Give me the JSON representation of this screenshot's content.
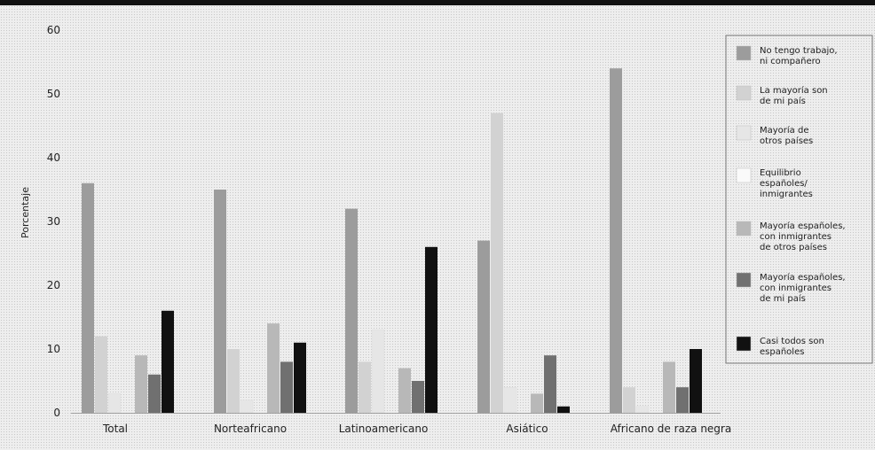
{
  "chart_data": {
    "type": "bar",
    "ylabel": "Porcentaje",
    "ylim": [
      0,
      60
    ],
    "yticks": [
      "0",
      "10",
      "20",
      "30",
      "40",
      "50",
      "60"
    ],
    "categories": [
      "Total",
      "Norteafricano",
      "Latinoamericano",
      "Asiático",
      "Africano de raza negra"
    ],
    "legend_position": "right",
    "series": [
      {
        "name": "No tengo trabajo, ni compañero",
        "legend_lines": [
          "No tengo trabajo,",
          "ni compañero"
        ],
        "color": "#9c9c9c",
        "values": [
          36,
          35,
          32,
          27,
          54
        ]
      },
      {
        "name": "La mayoría son de mi país",
        "legend_lines": [
          "La mayoría son",
          "de mi país"
        ],
        "color": "#d2d2d2",
        "values": [
          12,
          10,
          8,
          47,
          4
        ]
      },
      {
        "name": "Mayoría de otros países",
        "legend_lines": [
          "Mayoría de",
          "otros países"
        ],
        "color": "#e6e6e6",
        "values": [
          3,
          2,
          13,
          4,
          1
        ]
      },
      {
        "name": "Equilibrio españoles/ inmigrantes",
        "legend_lines": [
          "Equilibrio",
          "españoles/",
          "inmigrantes"
        ],
        "color": "#fafafa",
        "values": [
          0,
          0,
          0,
          0,
          0
        ]
      },
      {
        "name": "Mayoría españoles, con inmigrantes de otros países",
        "legend_lines": [
          "Mayoría españoles,",
          "con inmigrantes",
          "de otros países"
        ],
        "color": "#b8b8b8",
        "values": [
          9,
          14,
          7,
          3,
          8
        ]
      },
      {
        "name": "Mayoría españoles, con inmigrantes de mi país",
        "legend_lines": [
          "Mayoría españoles,",
          "con inmigrantes",
          "de mi país"
        ],
        "color": "#707070",
        "values": [
          6,
          8,
          5,
          9,
          4
        ]
      },
      {
        "name": "Casi todos son españoles",
        "legend_lines": [
          "Casi todos son",
          "españoles"
        ],
        "color": "#111111",
        "values": [
          16,
          11,
          26,
          1,
          10
        ]
      }
    ]
  }
}
